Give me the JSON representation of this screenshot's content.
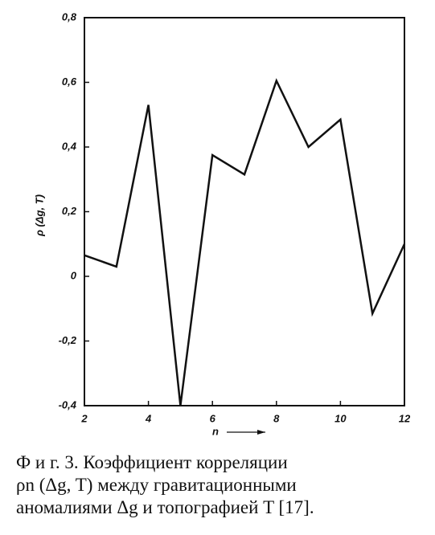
{
  "chart_data": {
    "type": "line",
    "ylabel": "ρ (Δg, T)",
    "xlabel": "n",
    "x": [
      2,
      3,
      4,
      5,
      6,
      7,
      8,
      9,
      10,
      11,
      12
    ],
    "values": [
      0.065,
      0.03,
      0.53,
      -0.4,
      0.375,
      0.315,
      0.605,
      0.4,
      0.485,
      -0.115,
      0.1
    ],
    "color": "#111111",
    "xlim": [
      2,
      12
    ],
    "ylim": [
      -0.4,
      0.8
    ],
    "xticks": [
      2,
      4,
      6,
      8,
      10,
      12
    ],
    "yticks": [
      {
        "value": -0.4,
        "label": "-0,4"
      },
      {
        "value": -0.2,
        "label": "-0,2"
      },
      0,
      {
        "value": 0.2,
        "label": "0,2"
      },
      {
        "value": 0.4,
        "label": "0,4"
      },
      {
        "value": 0.6,
        "label": "0,6"
      },
      {
        "value": 0.8,
        "label": "0,8"
      }
    ],
    "grid": false
  },
  "caption": {
    "lines": [
      "Ф и г. 3. Коэффициент корреляции",
      "ρn (Δg, T) между гравитационными",
      "аномалиями Δg и топографией T [17]."
    ]
  }
}
